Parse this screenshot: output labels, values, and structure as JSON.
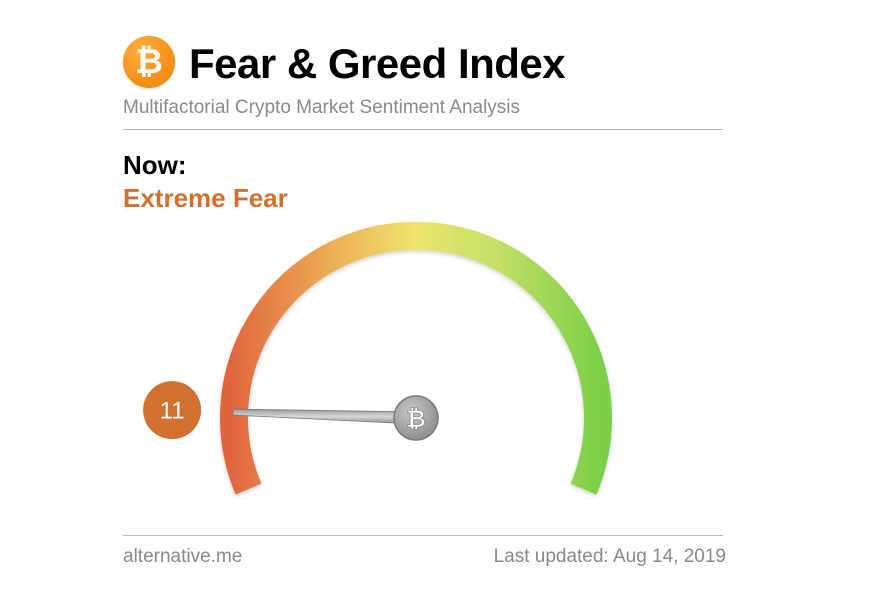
{
  "header": {
    "logo_glyph": "₿",
    "logo_icon": "bitcoin-icon",
    "title": "Fear & Greed Index",
    "subtitle": "Multifactorial Crypto Market Sentiment Analysis"
  },
  "status": {
    "now_label": "Now:",
    "classification": "Extreme Fear",
    "classification_color": "#d2702f"
  },
  "chart_data": {
    "type": "gauge",
    "value": 11,
    "value_label": "11",
    "range": [
      0,
      100
    ],
    "pivot_glyph": "₿",
    "pivot_icon": "bitcoin-icon",
    "badge_color": "#d2702f",
    "gradient_colors": [
      "#e0653e",
      "#edb458",
      "#ede56e",
      "#c3e066",
      "#7ccf48"
    ]
  },
  "footer": {
    "source": "alternative.me",
    "updated_label": "Last updated:",
    "updated_date": "Aug 14, 2019"
  }
}
